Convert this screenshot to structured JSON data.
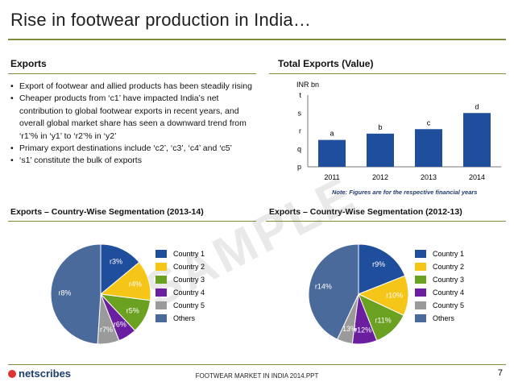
{
  "title": "Rise in footwear production in India…",
  "sections": {
    "exports": "Exports",
    "total_exports": "Total Exports (Value)",
    "seg_1314": "Exports – Country-Wise Segmentation (2013-14)",
    "seg_1213": "Exports – Country-Wise Segmentation (2012-13)"
  },
  "bullets": [
    "Export of footwear and allied products has been steadily rising",
    "Cheaper products from ‘c1’ have impacted India’s net contribution to global footwear exports in recent years, and overall global market share has seen a downward trend from ‘r1’% in ‘y1’ to ‘r2’% in ‘y2’",
    "Primary export destinations include ‘c2’, ‘c3’, ‘c4’ and ‘c5’",
    "‘s1’ constitute the bulk of exports"
  ],
  "colors": {
    "accent_rule": "#7d8e3a",
    "bar": "#1f4e9c",
    "country1": "#1f4e9c",
    "country2": "#f5c518",
    "country3": "#6aa121",
    "country4": "#6a1fa0",
    "country5": "#9a9a9a",
    "others": "#4a6a9c"
  },
  "chart_data": [
    {
      "type": "bar",
      "unit_label": "INR bn",
      "categories": [
        "2011",
        "2012",
        "2013",
        "2014"
      ],
      "values": [
        1.5,
        1.85,
        2.1,
        3.0
      ],
      "data_labels": [
        "a",
        "b",
        "c",
        "d"
      ],
      "y_tick_labels": [
        "p",
        "q",
        "r",
        "s",
        "t"
      ],
      "ylim": [
        0,
        4
      ],
      "note": "Note: Figures are for the respective financial years"
    },
    {
      "type": "pie",
      "title": "Exports – Country-Wise Segmentation (2013-14)",
      "slices": [
        {
          "name": "Country 1",
          "label": "r3%",
          "value": 14
        },
        {
          "name": "Country 2",
          "label": "r4%",
          "value": 13
        },
        {
          "name": "Country 3",
          "label": "r5%",
          "value": 11
        },
        {
          "name": "Country 4",
          "label": "r6%",
          "value": 6
        },
        {
          "name": "Country 5",
          "label": "r7%",
          "value": 7
        },
        {
          "name": "Others",
          "label": "r8%",
          "value": 49
        }
      ]
    },
    {
      "type": "pie",
      "title": "Exports – Country-Wise Segmentation (2012-13)",
      "slices": [
        {
          "name": "Country 1",
          "label": "r9%",
          "value": 19
        },
        {
          "name": "Country 2",
          "label": "r10%",
          "value": 13
        },
        {
          "name": "Country 3",
          "label": "r11%",
          "value": 12
        },
        {
          "name": "Country 4",
          "label": "r12%",
          "value": 8
        },
        {
          "name": "Country 5",
          "label": "r13%",
          "value": 5
        },
        {
          "name": "Others",
          "label": "r14%",
          "value": 43
        }
      ]
    }
  ],
  "legend": [
    "Country 1",
    "Country 2",
    "Country 3",
    "Country 4",
    "Country 5",
    "Others"
  ],
  "watermark": "SAMPLE",
  "footer": {
    "logo": "netscribes",
    "text": "FOOTWEAR MARKET IN INDIA 2014.PPT",
    "page": "7"
  }
}
